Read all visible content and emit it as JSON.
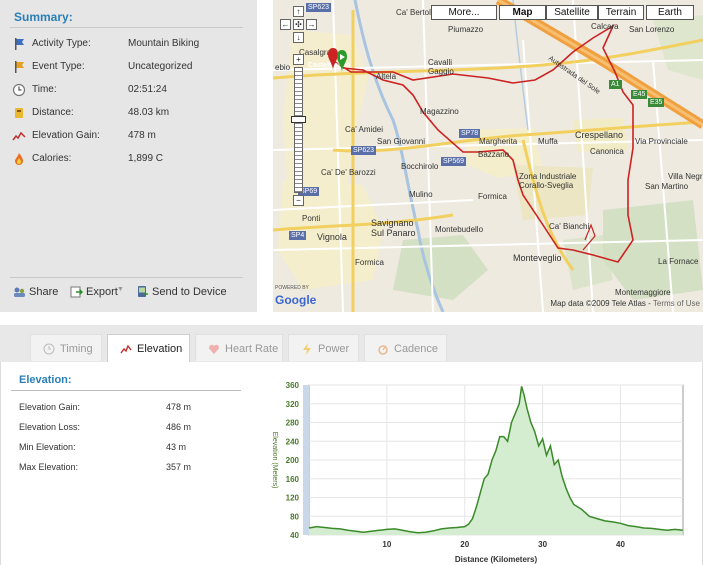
{
  "summary": {
    "title": "Summary:",
    "rows": [
      {
        "icon": "activity-flag-icon",
        "label": "Activity Type:",
        "value": "Mountain Biking"
      },
      {
        "icon": "event-flag-icon",
        "label": "Event Type:",
        "value": "Uncategorized"
      },
      {
        "icon": "clock-icon",
        "label": "Time:",
        "value": "02:51:24"
      },
      {
        "icon": "distance-icon",
        "label": "Distance:",
        "value": "48.03 km"
      },
      {
        "icon": "elevation-icon",
        "label": "Elevation Gain:",
        "value": "478 m"
      },
      {
        "icon": "calories-icon",
        "label": "Calories:",
        "value": "1,899 C"
      }
    ],
    "actions": {
      "share": "Share",
      "export": "Export",
      "send": "Send to Device"
    }
  },
  "map": {
    "types": {
      "more": "More...",
      "map": "Map",
      "satellite": "Satellite",
      "terrain": "Terrain",
      "earth": "Earth"
    },
    "places": {
      "ca_bertoli": "Ca' Bertoli",
      "piumazzo": "Piumazzo",
      "calcara": "Calcara",
      "san_lorenzo": "San Lorenzo",
      "casalgrande": "Casalgra",
      "ebio": "ebio",
      "ria": "ria",
      "castelfranco": "Castelfranco",
      "altela": "Altela",
      "cavalli": "Cavalli",
      "gaggio": "Gaggio",
      "magazzino": "Magazzino",
      "autostrada": "Autostrada del Sole",
      "ca_amidei": "Ca' Amidei",
      "san_giovanni": "San Giovanni",
      "bazzano": "Bazzano",
      "muffa": "Muffa",
      "crespellano": "Crespellano",
      "canonica": "Canonica",
      "via_provinciale": "Via Provinciale",
      "ca_de_barozzi": "Ca' De' Barozzi",
      "bocchirolo": "Bocchirolo",
      "magherita": "Margherita",
      "zona": "Zona Industriale",
      "corallo": "Corallo-Sveglia",
      "san_martino": "San Martino",
      "villa_negri": "Villa Negri",
      "mulino": "Mulino",
      "formica": "Formica",
      "ca_bianchi": "Ca' Bianchi",
      "ponti": "Ponti",
      "vignola": "Vignola",
      "savignano": "Savignano",
      "sul_panaro": "Sul Panaro",
      "montebudello": "Montebudello",
      "monteveglio": "Monteveglio",
      "la_fornace": "La Fornace",
      "formica2": "Formica",
      "montemaggiore": "Montemaggiore",
      "vignano": "Vigno"
    },
    "roads": {
      "sp623": "SP623",
      "sp623b": "SP623",
      "sp569": "SP569",
      "sp569b": "SP569",
      "sp4": "SP4",
      "a1": "A1",
      "e45": "E45",
      "e35": "E35",
      "sp78": "SP78",
      "sp69": "SP69"
    },
    "powered": "POWERED BY",
    "google": "Google",
    "copyright": "Map data ©2009 Tele Atlas",
    "terms": "Terms of Use"
  },
  "tabs": [
    {
      "icon": "clock-icon",
      "label": "Timing",
      "active": false
    },
    {
      "icon": "elevation-icon",
      "label": "Elevation",
      "active": true
    },
    {
      "icon": "heart-icon",
      "label": "Heart Rate",
      "active": false
    },
    {
      "icon": "power-icon",
      "label": "Power",
      "active": false
    },
    {
      "icon": "cadence-icon",
      "label": "Cadence",
      "active": false
    }
  ],
  "elevation": {
    "title": "Elevation:",
    "rows": [
      {
        "label": "Elevation Gain:",
        "value": "478 m"
      },
      {
        "label": "Elevation Loss:",
        "value": "486 m"
      },
      {
        "label": "Min Elevation:",
        "value": "43 m"
      },
      {
        "label": "Max Elevation:",
        "value": "357 m"
      }
    ]
  },
  "colors": {
    "accent": "#2b7fb8",
    "route": "#cc2222",
    "chart_line": "#3a8a2a",
    "chart_fill": "#d4ecd0",
    "highway": "#f0a040"
  },
  "chart_data": {
    "type": "area",
    "title": "",
    "xlabel": "Distance (Kilometers)",
    "ylabel": "Elevation (Meters)",
    "xlim": [
      0,
      48.03
    ],
    "ylim": [
      40,
      360
    ],
    "xticks": [
      10,
      20,
      30,
      40
    ],
    "yticks": [
      40,
      80,
      120,
      160,
      200,
      240,
      280,
      320,
      360
    ],
    "grid": true,
    "series": [
      {
        "x": [
          0,
          1,
          2,
          3,
          4,
          5,
          6,
          7,
          8,
          9,
          10,
          11,
          12,
          13,
          14,
          15,
          16,
          17,
          18,
          19,
          20,
          20.5,
          21,
          21.5,
          22,
          22.5,
          23,
          23.5,
          24,
          24.5,
          25,
          25.5,
          26,
          26.5,
          27,
          27.3,
          27.6,
          28,
          28.5,
          29,
          29.5,
          30,
          30.5,
          31,
          31.5,
          32,
          32.5,
          33,
          33.5,
          34,
          35,
          36,
          37,
          38,
          39,
          40,
          41,
          42,
          43,
          44,
          45,
          46,
          47,
          48
        ],
        "y": [
          55,
          58,
          56,
          54,
          53,
          50,
          48,
          46,
          48,
          50,
          52,
          53,
          50,
          47,
          45,
          46,
          49,
          53,
          55,
          56,
          58,
          63,
          75,
          100,
          130,
          160,
          170,
          200,
          220,
          250,
          250,
          240,
          280,
          300,
          320,
          357,
          340,
          310,
          280,
          260,
          230,
          245,
          210,
          230,
          190,
          200,
          165,
          140,
          120,
          105,
          95,
          80,
          75,
          70,
          68,
          65,
          60,
          58,
          55,
          54,
          52,
          50,
          52,
          50
        ]
      }
    ]
  }
}
